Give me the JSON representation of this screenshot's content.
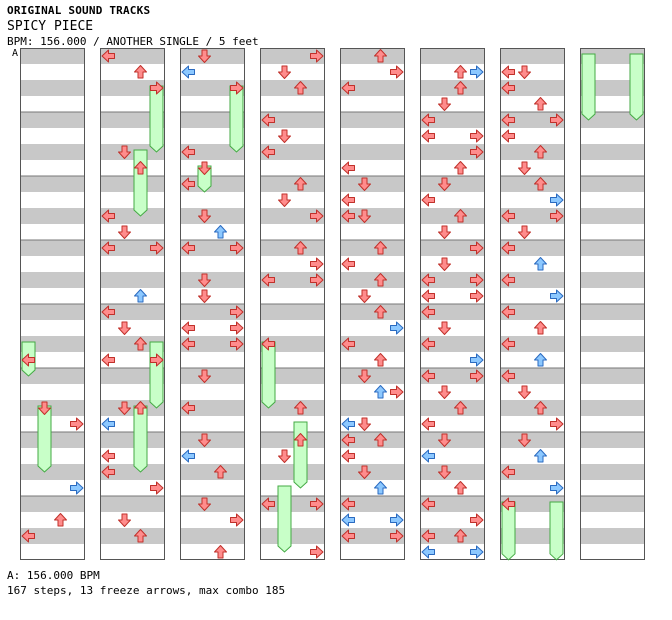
{
  "header": {
    "category": "ORIGINAL SOUND TRACKS",
    "title": "SPICY PIECE",
    "meta": "BPM: 156.000 / ANOTHER SINGLE / 5 feet"
  },
  "bpm_marker": "A",
  "footer": {
    "bpm_line": "A: 156.000 BPM",
    "stats": "167 steps, 13 freeze arrows, max combo 185"
  },
  "colors": {
    "stripe": "#c8c8c8",
    "column_border": "#555555",
    "arrow_red": "#ff8c8c",
    "arrow_red_stroke": "#c0302a",
    "arrow_blue": "#8cc8ff",
    "arrow_blue_stroke": "#2a6ac0",
    "freeze_fill": "#c8ffc8",
    "freeze_stroke": "#44aa44"
  },
  "chart": {
    "beats_per_column": 32,
    "columns": [
      {
        "notes": [
          [
            19,
            0
          ],
          [
            22,
            1
          ],
          [
            23,
            3
          ],
          [
            27,
            3
          ],
          [
            29,
            2
          ],
          [
            30,
            0
          ]
        ],
        "freezes": [
          [
            18,
            20.5,
            0
          ],
          [
            22,
            26.5,
            1
          ]
        ]
      },
      {
        "notes": [
          [
            0,
            0
          ],
          [
            1,
            2
          ],
          [
            2,
            3
          ],
          [
            6,
            1
          ],
          [
            7,
            2
          ],
          [
            10,
            0
          ],
          [
            11,
            1
          ],
          [
            12,
            0
          ],
          [
            12,
            3
          ],
          [
            15,
            2
          ],
          [
            16,
            0
          ],
          [
            17,
            1
          ],
          [
            18,
            2
          ],
          [
            19,
            0
          ],
          [
            19,
            3
          ],
          [
            22,
            1
          ],
          [
            22,
            2
          ],
          [
            23,
            0
          ],
          [
            25,
            0
          ],
          [
            26,
            0
          ],
          [
            27,
            3
          ],
          [
            29,
            1
          ],
          [
            30,
            2
          ]
        ],
        "freezes": [
          [
            2,
            6.5,
            3
          ],
          [
            6,
            10.5,
            2
          ],
          [
            18,
            22.5,
            3
          ],
          [
            22,
            26.5,
            2
          ]
        ]
      },
      {
        "notes": [
          [
            0,
            1
          ],
          [
            1,
            0
          ],
          [
            2,
            3
          ],
          [
            6,
            0
          ],
          [
            7,
            1
          ],
          [
            8,
            0
          ],
          [
            10,
            1
          ],
          [
            11,
            2
          ],
          [
            12,
            0
          ],
          [
            12,
            3
          ],
          [
            14,
            1
          ],
          [
            15,
            1
          ],
          [
            16,
            3
          ],
          [
            17,
            0
          ],
          [
            17,
            3
          ],
          [
            18,
            0
          ],
          [
            18,
            3
          ],
          [
            20,
            1
          ],
          [
            22,
            0
          ],
          [
            24,
            1
          ],
          [
            25,
            0
          ],
          [
            26,
            2
          ],
          [
            28,
            1
          ],
          [
            29,
            3
          ],
          [
            31,
            2
          ]
        ],
        "freezes": [
          [
            2,
            6.5,
            3
          ],
          [
            7,
            9,
            1
          ]
        ]
      },
      {
        "notes": [
          [
            0,
            3
          ],
          [
            1,
            1
          ],
          [
            2,
            2
          ],
          [
            4,
            0
          ],
          [
            5,
            1
          ],
          [
            6,
            0
          ],
          [
            8,
            2
          ],
          [
            9,
            1
          ],
          [
            10,
            3
          ],
          [
            12,
            2
          ],
          [
            13,
            3
          ],
          [
            14,
            0
          ],
          [
            14,
            3
          ],
          [
            18,
            0
          ],
          [
            22,
            2
          ],
          [
            24,
            2
          ],
          [
            25,
            1
          ],
          [
            28,
            0
          ],
          [
            28,
            3
          ],
          [
            31,
            3
          ]
        ],
        "freezes": [
          [
            18,
            22.5,
            0
          ],
          [
            23,
            27.5,
            2
          ],
          [
            27,
            31.5,
            1
          ]
        ]
      },
      {
        "notes": [
          [
            0,
            2
          ],
          [
            1,
            3
          ],
          [
            2,
            0
          ],
          [
            7,
            0
          ],
          [
            8,
            1
          ],
          [
            9,
            0
          ],
          [
            10,
            1
          ],
          [
            10,
            0
          ],
          [
            12,
            2
          ],
          [
            13,
            0
          ],
          [
            14,
            2
          ],
          [
            15,
            1
          ],
          [
            16,
            2
          ],
          [
            17,
            3
          ],
          [
            18,
            0
          ],
          [
            19,
            2
          ],
          [
            20,
            1
          ],
          [
            21,
            2
          ],
          [
            21,
            3
          ],
          [
            23,
            0
          ],
          [
            23,
            1
          ],
          [
            24,
            0
          ],
          [
            24,
            2
          ],
          [
            25,
            0
          ],
          [
            26,
            1
          ],
          [
            27,
            2
          ],
          [
            28,
            0
          ],
          [
            29,
            0
          ],
          [
            29,
            3
          ],
          [
            30,
            0
          ],
          [
            30,
            3
          ]
        ],
        "freezes": []
      },
      {
        "notes": [
          [
            1,
            2
          ],
          [
            1,
            3
          ],
          [
            2,
            2
          ],
          [
            3,
            1
          ],
          [
            4,
            0
          ],
          [
            5,
            0
          ],
          [
            5,
            3
          ],
          [
            6,
            3
          ],
          [
            7,
            2
          ],
          [
            8,
            1
          ],
          [
            9,
            0
          ],
          [
            10,
            2
          ],
          [
            11,
            1
          ],
          [
            12,
            3
          ],
          [
            13,
            1
          ],
          [
            14,
            0
          ],
          [
            14,
            3
          ],
          [
            15,
            0
          ],
          [
            15,
            3
          ],
          [
            16,
            0
          ],
          [
            17,
            1
          ],
          [
            18,
            0
          ],
          [
            19,
            3
          ],
          [
            20,
            0
          ],
          [
            20,
            3
          ],
          [
            21,
            1
          ],
          [
            22,
            2
          ],
          [
            23,
            0
          ],
          [
            24,
            1
          ],
          [
            25,
            0
          ],
          [
            26,
            1
          ],
          [
            27,
            2
          ],
          [
            28,
            0
          ],
          [
            29,
            3
          ],
          [
            30,
            2
          ],
          [
            30,
            0
          ],
          [
            31,
            0
          ],
          [
            31,
            3
          ]
        ],
        "freezes": []
      },
      {
        "notes": [
          [
            1,
            0
          ],
          [
            1,
            1
          ],
          [
            2,
            0
          ],
          [
            3,
            2
          ],
          [
            4,
            0
          ],
          [
            4,
            3
          ],
          [
            5,
            0
          ],
          [
            6,
            2
          ],
          [
            7,
            1
          ],
          [
            8,
            2
          ],
          [
            9,
            3
          ],
          [
            10,
            3
          ],
          [
            10,
            0
          ],
          [
            11,
            1
          ],
          [
            12,
            0
          ],
          [
            13,
            2
          ],
          [
            14,
            0
          ],
          [
            15,
            3
          ],
          [
            16,
            0
          ],
          [
            17,
            2
          ],
          [
            18,
            0
          ],
          [
            19,
            2
          ],
          [
            20,
            0
          ],
          [
            21,
            1
          ],
          [
            22,
            2
          ],
          [
            23,
            3
          ],
          [
            24,
            1
          ],
          [
            25,
            2
          ],
          [
            26,
            0
          ],
          [
            27,
            3
          ],
          [
            28,
            0
          ]
        ],
        "freezes": [
          [
            28,
            31.99,
            0
          ],
          [
            28,
            31.99,
            3
          ]
        ]
      },
      {
        "notes": [],
        "freezes": [
          [
            0,
            4.5,
            0
          ],
          [
            0,
            4.5,
            3
          ]
        ]
      }
    ]
  }
}
